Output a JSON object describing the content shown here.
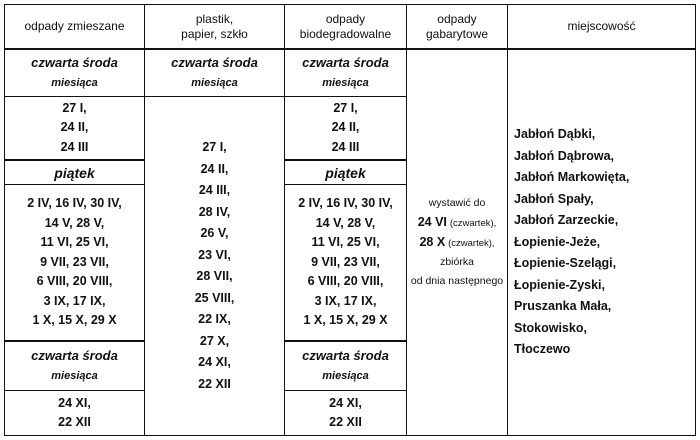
{
  "headers": [
    "odpady zmieszane",
    "plastik,\npapier, szkło",
    "odpady\nbiodegradowalne",
    "odpady\ngabarytowe",
    "miejscowość"
  ],
  "sroda_a": "czwarta środa",
  "sroda_b": "miesiąca",
  "piatek": "piątek",
  "col1": {
    "first": [
      "27 I,",
      "24 II,",
      "24 III"
    ],
    "piatek_dates": [
      "2 IV, 16 IV, 30 IV,",
      "14 V, 28 V,",
      "11 VI, 25 VI,",
      "9 VII, 23 VII,",
      "6 VIII, 20 VIII,",
      "3 IX, 17 IX,",
      "1 X, 15 X, 29 X"
    ],
    "last": [
      "24 XI,",
      "22 XII"
    ]
  },
  "col2": {
    "dates": [
      "27 I,",
      "24 II,",
      "24 III,",
      "28 IV,",
      "26 V,",
      "23 VI,",
      "28 VII,",
      "25 VIII,",
      "22 IX,",
      "27 X,",
      "24 XI,",
      "22 XII"
    ]
  },
  "col3": {
    "first": [
      "27 I,",
      "24 II,",
      "24 III"
    ],
    "piatek_dates": [
      "2 IV, 16 IV, 30 IV,",
      "14 V, 28 V,",
      "11 VI, 25 VI,",
      "9 VII, 23 VII,",
      "6 VIII, 20 VIII,",
      "3 IX, 17 IX,",
      "1 X, 15 X, 29 X"
    ],
    "last": [
      "24 XI,",
      "22 XII"
    ]
  },
  "gabarytowe": {
    "line1": "wystawić do",
    "d1": "24 VI",
    "d1_note": "(czwartek),",
    "d2": "28 X",
    "d2_note": "(czwartek),",
    "line4": "zbiórka",
    "line5": "od dnia następnego"
  },
  "towns": [
    "Jabłoń Dąbki,",
    "Jabłoń Dąbrowa,",
    "Jabłoń Markowięta,",
    "Jabłoń Spały,",
    "Jabłoń Zarzeckie,",
    "Łopienie-Jeże,",
    "Łopienie-Szelągi,",
    "Łopienie-Zyski,",
    "Pruszanka Mała,",
    "Stokowisko,",
    "Tłoczewo"
  ]
}
